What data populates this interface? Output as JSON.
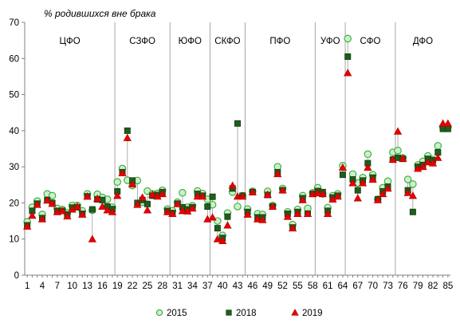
{
  "chart_data": {
    "type": "scatter",
    "ylabel": "% родившихся вне брака",
    "xlabel": "",
    "ylim": [
      0,
      70
    ],
    "yticks": [
      0,
      10,
      20,
      30,
      40,
      50,
      60,
      70
    ],
    "xlim": [
      0.5,
      85.5
    ],
    "xticks": [
      1,
      4,
      7,
      10,
      13,
      16,
      19,
      22,
      25,
      28,
      31,
      34,
      37,
      40,
      43,
      46,
      49,
      52,
      55,
      58,
      61,
      64,
      67,
      70,
      73,
      76,
      79,
      82,
      85
    ],
    "grid": false,
    "legend_position": "bottom",
    "districts": [
      {
        "label": "ЦФО",
        "start": 1,
        "end": 18
      },
      {
        "label": "СЗФО",
        "start": 19,
        "end": 29
      },
      {
        "label": "ЮФО",
        "start": 30,
        "end": 37
      },
      {
        "label": "СКФО",
        "start": 38,
        "end": 44
      },
      {
        "label": "ПФО",
        "start": 45,
        "end": 58
      },
      {
        "label": "УФО",
        "start": 59,
        "end": 64
      },
      {
        "label": "СФО",
        "start": 65,
        "end": 74
      },
      {
        "label": "ДФО",
        "start": 75,
        "end": 85
      }
    ],
    "series": [
      {
        "name": "2015",
        "marker": "circle",
        "fill": "#c9f2c9",
        "stroke": "#3aa83a",
        "values": [
          14.8,
          18.8,
          20.5,
          16.8,
          22.5,
          22.0,
          18.5,
          18.2,
          17.2,
          19.3,
          19.3,
          17.8,
          22.5,
          18.0,
          22.4,
          21.5,
          21.0,
          18.8,
          25.8,
          29.5,
          26.3,
          24.8,
          26.2,
          20.2,
          23.3,
          22.5,
          22.6,
          23.5,
          18.3,
          17.8,
          20.2,
          22.8,
          18.8,
          19.2,
          23.3,
          22.6,
          21.0,
          19.5,
          15.0,
          11.0,
          17.2,
          23.0,
          19.0,
          22.0,
          18.3,
          23.2,
          17.0,
          16.8,
          23.2,
          19.3,
          30.0,
          24.0,
          17.5,
          14.0,
          18.2,
          22.0,
          18.5,
          22.8,
          24.2,
          22.5,
          18.7,
          22.0,
          22.5,
          30.3,
          65.5,
          28.0,
          25.5,
          27.0,
          33.5,
          27.8,
          21.0,
          24.2,
          26.0,
          34.0,
          34.5,
          32.5,
          26.5,
          25.2,
          30.5,
          31.5,
          33.0,
          32.0,
          35.8,
          41.0,
          41.0
        ]
      },
      {
        "name": "2018",
        "marker": "square",
        "fill": "#1e5e1e",
        "stroke": "#0f3f0f",
        "values": [
          13.8,
          17.8,
          19.8,
          15.8,
          20.8,
          20.0,
          17.8,
          17.8,
          16.8,
          18.7,
          18.8,
          17.0,
          21.8,
          18.2,
          21.0,
          20.8,
          19.0,
          18.3,
          23.2,
          28.5,
          40.0,
          26.2,
          20.0,
          20.8,
          19.7,
          22.0,
          22.2,
          23.0,
          17.8,
          17.2,
          19.8,
          18.8,
          18.2,
          18.8,
          22.5,
          22.0,
          19.0,
          21.7,
          13.0,
          10.3,
          16.2,
          24.0,
          42.0,
          22.0,
          17.5,
          23.0,
          16.0,
          16.0,
          22.2,
          19.0,
          28.5,
          23.5,
          17.0,
          13.2,
          17.5,
          21.3,
          17.0,
          22.5,
          23.3,
          23.0,
          17.8,
          21.5,
          22.0,
          27.8,
          60.5,
          26.5,
          23.5,
          26.2,
          31.0,
          27.0,
          21.0,
          23.2,
          24.5,
          32.0,
          32.5,
          32.2,
          23.5,
          17.5,
          30.0,
          30.5,
          32.2,
          31.8,
          34.0,
          40.5,
          40.5
        ]
      },
      {
        "name": "2019",
        "marker": "triangle",
        "fill": "#e60000",
        "stroke": "#b30000",
        "values": [
          13.5,
          16.5,
          19.5,
          15.5,
          20.7,
          19.8,
          17.5,
          17.8,
          16.3,
          18.2,
          19.0,
          16.8,
          21.8,
          10.0,
          21.2,
          19.0,
          18.0,
          17.5,
          22.0,
          28.3,
          38.0,
          25.2,
          19.5,
          21.5,
          18.0,
          22.3,
          21.8,
          22.5,
          17.5,
          17.0,
          19.7,
          17.8,
          17.7,
          18.5,
          21.8,
          21.8,
          15.5,
          16.0,
          10.0,
          9.5,
          13.8,
          24.8,
          21.8,
          21.8,
          16.8,
          23.0,
          15.5,
          15.3,
          22.3,
          19.0,
          28.0,
          23.5,
          16.2,
          13.0,
          17.0,
          20.8,
          17.0,
          22.5,
          22.7,
          22.5,
          17.0,
          21.0,
          21.8,
          29.8,
          56.0,
          25.5,
          21.3,
          25.5,
          29.8,
          26.5,
          20.8,
          22.5,
          24.0,
          32.0,
          39.8,
          32.3,
          22.8,
          22.0,
          29.5,
          30.0,
          31.3,
          31.0,
          32.5,
          42.0,
          42.0
        ]
      }
    ]
  }
}
